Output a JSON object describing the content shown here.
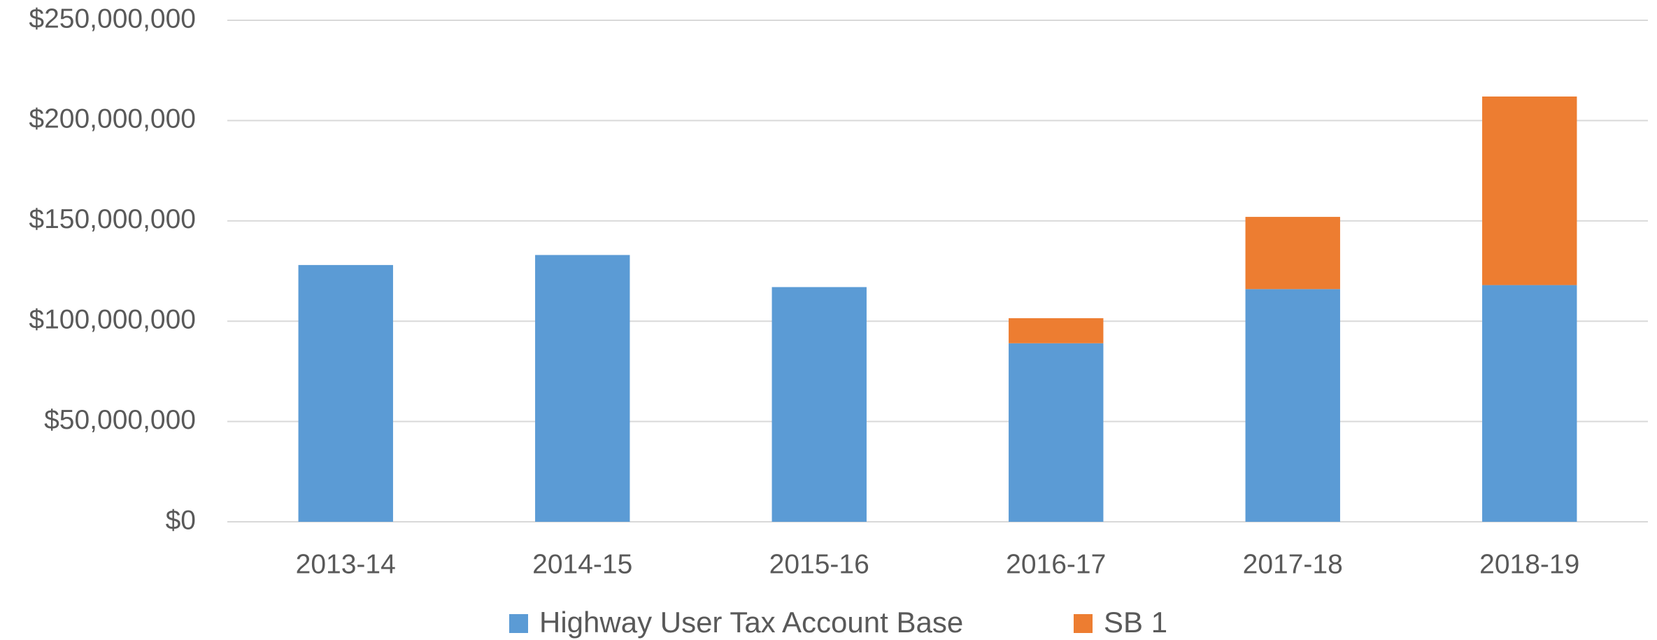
{
  "chart_data": {
    "type": "stacked_bar",
    "categories": [
      "2013-14",
      "2014-15",
      "2015-16",
      "2016-17",
      "2017-18",
      "2018-19"
    ],
    "series": [
      {
        "name": "Highway User Tax Account Base",
        "color": "#5b9bd5",
        "values": [
          128000000,
          133000000,
          117000000,
          89000000,
          116000000,
          118000000
        ]
      },
      {
        "name": "SB 1",
        "color": "#ed7d31",
        "values": [
          null,
          null,
          null,
          12500000,
          36000000,
          94000000
        ]
      }
    ],
    "ylim": [
      0,
      250000000
    ],
    "yticks": [
      {
        "value": 0,
        "label": "$0"
      },
      {
        "value": 50000000,
        "label": "$50,000,000"
      },
      {
        "value": 100000000,
        "label": "$100,000,000"
      },
      {
        "value": 150000000,
        "label": "$150,000,000"
      },
      {
        "value": 200000000,
        "label": "$200,000,000"
      },
      {
        "value": 250000000,
        "label": "$250,000,000"
      }
    ],
    "grid": true,
    "legend": "bottom"
  }
}
